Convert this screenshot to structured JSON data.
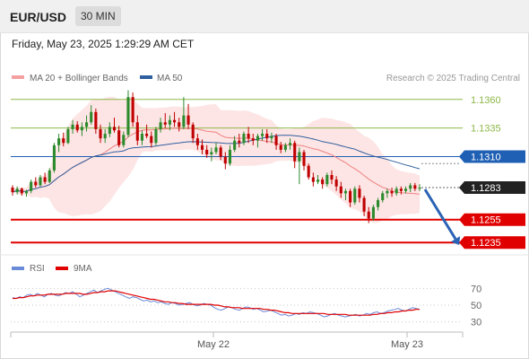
{
  "header": {
    "symbol": "EUR/USD",
    "timeframe": "30 MIN"
  },
  "datetime": "Friday, May 23, 2025 1:29:29 AM CET",
  "legend": {
    "ma20": "MA 20 + Bollinger Bands",
    "ma50": "MA 50"
  },
  "credit": "Research © 2025 Trading Central",
  "rsi_legend": {
    "rsi": "RSI",
    "ma": "9MA"
  },
  "colors": {
    "resistance": "#8db848",
    "pivot": "#1f5fb4",
    "support": "#e00000",
    "up": "#2d8a2d",
    "down": "#c00000",
    "ma20": "#f08080",
    "ma50": "#2f5f9e",
    "band": "#fde0e0",
    "arrow": "#2a63b5",
    "rsi": "#6a8bd8",
    "rsi_ma": "#e00000"
  },
  "chart_data": [
    {
      "type": "candlestick",
      "title": "EUR/USD 30 MIN",
      "ylim": [
        1.1225,
        1.137
      ],
      "x_ticks": [
        "May 22",
        "May 23"
      ],
      "levels": [
        {
          "label": "1.1360",
          "value": 1.136,
          "kind": "resistance"
        },
        {
          "label": "1.1335",
          "value": 1.1335,
          "kind": "resistance"
        },
        {
          "label": "1.1310",
          "value": 1.131,
          "kind": "pivot"
        },
        {
          "label": "1.1283",
          "value": 1.1283,
          "kind": "last"
        },
        {
          "label": "1.1255",
          "value": 1.1255,
          "kind": "support"
        },
        {
          "label": "1.1235",
          "value": 1.1235,
          "kind": "support"
        }
      ],
      "ohlc": [
        [
          1.1283,
          1.1285,
          1.1276,
          1.1279
        ],
        [
          1.1279,
          1.1284,
          1.1277,
          1.1282
        ],
        [
          1.1282,
          1.1283,
          1.1276,
          1.1278
        ],
        [
          1.1278,
          1.1281,
          1.1275,
          1.128
        ],
        [
          1.128,
          1.129,
          1.1278,
          1.1288
        ],
        [
          1.1288,
          1.1292,
          1.1283,
          1.1285
        ],
        [
          1.1285,
          1.1294,
          1.1284,
          1.1292
        ],
        [
          1.1292,
          1.1296,
          1.1286,
          1.1288
        ],
        [
          1.1288,
          1.13,
          1.1287,
          1.1298
        ],
        [
          1.1298,
          1.1322,
          1.1296,
          1.132
        ],
        [
          1.132,
          1.133,
          1.1314,
          1.1326
        ],
        [
          1.1326,
          1.1331,
          1.1319,
          1.1322
        ],
        [
          1.1322,
          1.1336,
          1.1321,
          1.1334
        ],
        [
          1.1334,
          1.1342,
          1.133,
          1.1338
        ],
        [
          1.1338,
          1.1341,
          1.1331,
          1.1333
        ],
        [
          1.1333,
          1.134,
          1.1328,
          1.1336
        ],
        [
          1.1336,
          1.1346,
          1.1332,
          1.134
        ],
        [
          1.134,
          1.1355,
          1.1338,
          1.1349
        ],
        [
          1.1349,
          1.1352,
          1.133,
          1.1334
        ],
        [
          1.1334,
          1.1338,
          1.1322,
          1.1326
        ],
        [
          1.1326,
          1.1334,
          1.1322,
          1.133
        ],
        [
          1.133,
          1.134,
          1.1327,
          1.1336
        ],
        [
          1.1336,
          1.1344,
          1.1331,
          1.1333
        ],
        [
          1.1333,
          1.1337,
          1.1318,
          1.132
        ],
        [
          1.132,
          1.1332,
          1.1318,
          1.1329
        ],
        [
          1.1329,
          1.1368,
          1.1327,
          1.1362
        ],
        [
          1.1362,
          1.1366,
          1.1336,
          1.134
        ],
        [
          1.134,
          1.1346,
          1.132,
          1.1324
        ],
        [
          1.1324,
          1.1333,
          1.132,
          1.133
        ],
        [
          1.133,
          1.1338,
          1.1326,
          1.1328
        ],
        [
          1.1328,
          1.1332,
          1.1318,
          1.1322
        ],
        [
          1.1322,
          1.1336,
          1.132,
          1.1334
        ],
        [
          1.1334,
          1.1344,
          1.1331,
          1.134
        ],
        [
          1.134,
          1.1348,
          1.1335,
          1.1338
        ],
        [
          1.1338,
          1.1346,
          1.1333,
          1.1342
        ],
        [
          1.1342,
          1.1349,
          1.1336,
          1.134
        ],
        [
          1.134,
          1.1344,
          1.1332,
          1.1336
        ],
        [
          1.1336,
          1.1362,
          1.1334,
          1.1346
        ],
        [
          1.1346,
          1.1356,
          1.1334,
          1.1338
        ],
        [
          1.1338,
          1.134,
          1.1322,
          1.1326
        ],
        [
          1.1326,
          1.133,
          1.1316,
          1.132
        ],
        [
          1.132,
          1.1325,
          1.1312,
          1.1316
        ],
        [
          1.1316,
          1.132,
          1.1309,
          1.1312
        ],
        [
          1.1312,
          1.1318,
          1.1306,
          1.1314
        ],
        [
          1.1314,
          1.1322,
          1.1312,
          1.1318
        ],
        [
          1.1318,
          1.132,
          1.1307,
          1.131
        ],
        [
          1.131,
          1.1314,
          1.1299,
          1.1304
        ],
        [
          1.1304,
          1.132,
          1.1302,
          1.1316
        ],
        [
          1.1316,
          1.1328,
          1.1314,
          1.1324
        ],
        [
          1.1324,
          1.133,
          1.1318,
          1.1322
        ],
        [
          1.1322,
          1.1332,
          1.132,
          1.133
        ],
        [
          1.133,
          1.1336,
          1.1322,
          1.1326
        ],
        [
          1.1326,
          1.133,
          1.132,
          1.1324
        ],
        [
          1.1324,
          1.133,
          1.1318,
          1.1328
        ],
        [
          1.1328,
          1.1334,
          1.1324,
          1.133
        ],
        [
          1.133,
          1.1334,
          1.1322,
          1.1326
        ],
        [
          1.1326,
          1.1331,
          1.1322,
          1.1328
        ],
        [
          1.1328,
          1.133,
          1.1316,
          1.132
        ],
        [
          1.132,
          1.1323,
          1.1313,
          1.1316
        ],
        [
          1.1316,
          1.1322,
          1.1314,
          1.132
        ],
        [
          1.132,
          1.1326,
          1.1316,
          1.1322
        ],
        [
          1.1322,
          1.1324,
          1.13,
          1.1306
        ],
        [
          1.1306,
          1.1318,
          1.1286,
          1.1314
        ],
        [
          1.1314,
          1.1316,
          1.1298,
          1.1302
        ],
        [
          1.1302,
          1.1304,
          1.129,
          1.1292
        ],
        [
          1.1292,
          1.1296,
          1.1284,
          1.1288
        ],
        [
          1.1288,
          1.1294,
          1.1286,
          1.129
        ],
        [
          1.129,
          1.1292,
          1.1282,
          1.1286
        ],
        [
          1.1286,
          1.1296,
          1.1284,
          1.1294
        ],
        [
          1.1294,
          1.1298,
          1.1286,
          1.129
        ],
        [
          1.129,
          1.1293,
          1.128,
          1.1284
        ],
        [
          1.1284,
          1.1288,
          1.1274,
          1.1278
        ],
        [
          1.1278,
          1.1282,
          1.1272,
          1.128
        ],
        [
          1.128,
          1.1282,
          1.1266,
          1.127
        ],
        [
          1.127,
          1.1284,
          1.1268,
          1.1282
        ],
        [
          1.1282,
          1.1285,
          1.127,
          1.1274
        ],
        [
          1.1274,
          1.1276,
          1.1258,
          1.1262
        ],
        [
          1.1262,
          1.1266,
          1.1252,
          1.1256
        ],
        [
          1.1256,
          1.1268,
          1.1254,
          1.1266
        ],
        [
          1.1266,
          1.1274,
          1.1263,
          1.1272
        ],
        [
          1.1272,
          1.128,
          1.127,
          1.1278
        ],
        [
          1.1278,
          1.1282,
          1.1274,
          1.128
        ],
        [
          1.128,
          1.1283,
          1.1275,
          1.1278
        ],
        [
          1.1278,
          1.1284,
          1.1276,
          1.1282
        ],
        [
          1.1282,
          1.1284,
          1.1277,
          1.128
        ],
        [
          1.128,
          1.1284,
          1.1278,
          1.1282
        ],
        [
          1.1282,
          1.1287,
          1.1279,
          1.1285
        ],
        [
          1.1285,
          1.1287,
          1.128,
          1.1282
        ],
        [
          1.1282,
          1.1286,
          1.128,
          1.1283
        ]
      ],
      "forecast": {
        "from": 1.1283,
        "to": 1.1235
      }
    },
    {
      "type": "line",
      "title": "RSI",
      "ylim": [
        20,
        80
      ],
      "y_ticks": [
        70,
        50,
        30
      ],
      "series": [
        {
          "name": "RSI",
          "values": [
            59,
            58,
            60,
            59,
            62,
            63,
            61,
            64,
            62,
            60,
            63,
            64,
            62,
            61,
            63,
            65,
            64,
            66,
            63,
            60,
            62,
            64,
            66,
            68,
            65,
            67,
            69,
            70,
            68,
            66,
            64,
            62,
            60,
            58,
            60,
            59,
            57,
            55,
            56,
            54,
            55,
            53,
            54,
            52,
            51,
            53,
            52,
            50,
            51,
            52,
            53,
            51,
            49,
            50,
            52,
            51,
            50,
            47,
            45,
            44,
            46,
            48,
            47,
            45,
            44,
            46,
            48,
            47,
            45,
            46,
            44,
            42,
            43,
            44,
            42,
            40,
            38,
            39,
            37,
            38,
            40,
            39,
            41,
            40,
            42,
            41,
            40,
            38,
            36,
            37,
            39,
            40,
            38,
            37,
            36,
            37,
            38,
            39,
            37,
            38,
            40,
            39,
            41,
            42,
            40,
            41,
            43,
            44,
            45,
            46,
            44,
            43,
            45,
            47,
            46,
            45
          ]
        },
        {
          "name": "9MA",
          "values": [
            58,
            58,
            59,
            59,
            60,
            61,
            61,
            62,
            62,
            62,
            63,
            63,
            63,
            63,
            63,
            64,
            64,
            64,
            64,
            64,
            63,
            63,
            64,
            65,
            65,
            66,
            66,
            67,
            67,
            67,
            66,
            65,
            64,
            63,
            62,
            61,
            60,
            59,
            58,
            57,
            57,
            56,
            55,
            54,
            54,
            53,
            53,
            52,
            52,
            51,
            51,
            51,
            51,
            51,
            51,
            51,
            51,
            50,
            50,
            49,
            48,
            48,
            47,
            47,
            47,
            46,
            46,
            46,
            46,
            46,
            46,
            45,
            45,
            44,
            44,
            43,
            42,
            41,
            41,
            40,
            40,
            40,
            40,
            40,
            40,
            40,
            40,
            40,
            40,
            39,
            39,
            39,
            39,
            39,
            39,
            38,
            38,
            38,
            38,
            38,
            38,
            38,
            39,
            39,
            40,
            40,
            41,
            41,
            42,
            42,
            43,
            43,
            44,
            44,
            45,
            45
          ]
        }
      ]
    }
  ]
}
